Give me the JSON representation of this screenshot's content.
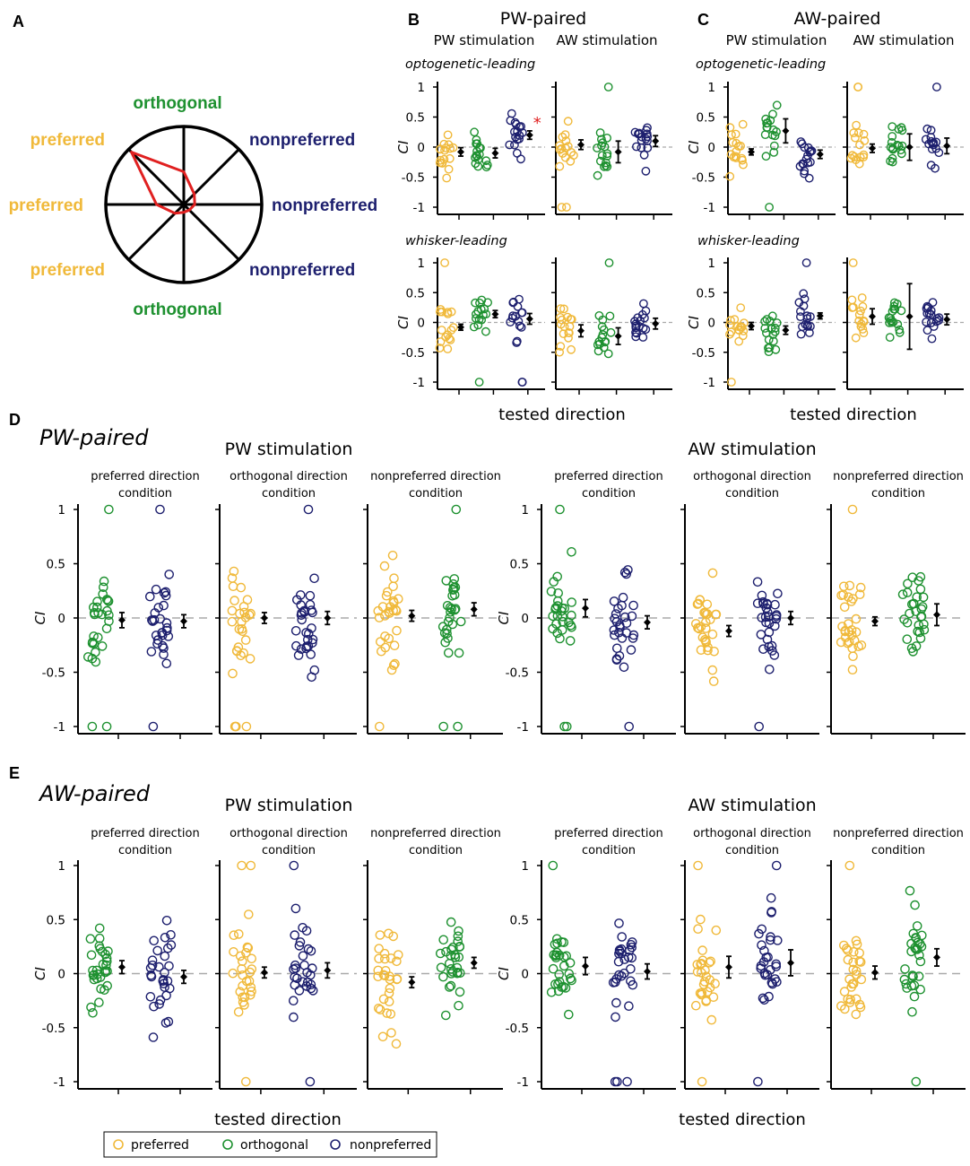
{
  "colors": {
    "preferred": "#f0b93a",
    "orthogonal": "#1e9130",
    "nonpreferred": "#1d1f6e",
    "polar_line": "#e02020",
    "star": "#e02020"
  },
  "panel_labels": [
    "A",
    "B",
    "C",
    "D",
    "E"
  ],
  "polar": {
    "labels": {
      "top": "orthogonal",
      "bottom": "orthogonal",
      "upper_left": "preferred",
      "left": "preferred",
      "lower_left": "preferred",
      "upper_right": "nonpreferred",
      "right": "nonpreferred",
      "lower_right": "nonpreferred"
    },
    "tuning_curve": [
      0.14,
      0.19,
      0.42,
      0.95,
      0.35,
      0.16,
      0.1,
      0.1
    ]
  },
  "panel_b": {
    "title": "PW-paired"
  },
  "panel_c": {
    "title": "AW-paired"
  },
  "stim_labels": {
    "pw": "PW stimulation",
    "aw": "AW stimulation"
  },
  "row_labels": {
    "optogenetic": "optogenetic-leading",
    "whisker": "whisker-leading"
  },
  "y_label": "CI",
  "tested_direction": "tested direction",
  "significance_star": "*",
  "panel_d": {
    "title": "PW-paired"
  },
  "panel_e": {
    "title": "AW-paired"
  },
  "condition_labels": [
    "preferred direction",
    "orthogonal direction",
    "nonpreferred direction"
  ],
  "condition_word": "condition",
  "legend": {
    "preferred": "preferred",
    "orthogonal": "orthogonal",
    "nonpreferred": "nonpreferred"
  },
  "chart_data": [
    {
      "type": "scatter",
      "panel": "B-top",
      "title": "PW-paired",
      "row": "optogenetic-leading",
      "ylabel": "CI",
      "ylim": [
        -1,
        1
      ],
      "yticks": [
        1,
        0.5,
        0,
        -0.5,
        -1
      ],
      "subplots": [
        {
          "stimulation": "PW stimulation",
          "series": [
            {
              "name": "preferred",
              "mean": -0.08,
              "err": 0.07
            },
            {
              "name": "orthogonal",
              "mean": -0.1,
              "err": 0.08
            },
            {
              "name": "nonpreferred",
              "mean": 0.2,
              "err": 0.07,
              "significant": true
            }
          ]
        },
        {
          "stimulation": "AW stimulation",
          "series": [
            {
              "name": "preferred",
              "mean": 0.04,
              "err": 0.08
            },
            {
              "name": "orthogonal",
              "mean": -0.08,
              "err": 0.18
            },
            {
              "name": "nonpreferred",
              "mean": 0.1,
              "err": 0.09
            }
          ]
        }
      ]
    },
    {
      "type": "scatter",
      "panel": "B-bottom",
      "row": "whisker-leading",
      "ylabel": "CI",
      "ylim": [
        -1,
        1
      ],
      "subplots": [
        {
          "stimulation": "PW stimulation",
          "series": [
            {
              "name": "preferred",
              "mean": -0.08,
              "err": 0.05
            },
            {
              "name": "orthogonal",
              "mean": 0.14,
              "err": 0.06
            },
            {
              "name": "nonpreferred",
              "mean": 0.06,
              "err": 0.09
            }
          ]
        },
        {
          "stimulation": "AW stimulation",
          "series": [
            {
              "name": "preferred",
              "mean": -0.14,
              "err": 0.1
            },
            {
              "name": "orthogonal",
              "mean": -0.23,
              "err": 0.14
            },
            {
              "name": "nonpreferred",
              "mean": -0.02,
              "err": 0.09
            }
          ]
        }
      ]
    },
    {
      "type": "scatter",
      "panel": "C-top",
      "title": "AW-paired",
      "row": "optogenetic-leading",
      "ylabel": "CI",
      "ylim": [
        -1,
        1
      ],
      "subplots": [
        {
          "stimulation": "PW stimulation",
          "series": [
            {
              "name": "preferred",
              "mean": -0.08,
              "err": 0.05
            },
            {
              "name": "orthogonal",
              "mean": 0.27,
              "err": 0.2
            },
            {
              "name": "nonpreferred",
              "mean": -0.12,
              "err": 0.07
            }
          ]
        },
        {
          "stimulation": "AW stimulation",
          "series": [
            {
              "name": "preferred",
              "mean": -0.02,
              "err": 0.07
            },
            {
              "name": "orthogonal",
              "mean": 0.0,
              "err": 0.22
            },
            {
              "name": "nonpreferred",
              "mean": 0.02,
              "err": 0.13
            }
          ]
        }
      ]
    },
    {
      "type": "scatter",
      "panel": "C-bottom",
      "row": "whisker-leading",
      "ylabel": "CI",
      "ylim": [
        -1,
        1
      ],
      "subplots": [
        {
          "stimulation": "PW stimulation",
          "series": [
            {
              "name": "preferred",
              "mean": -0.06,
              "err": 0.06
            },
            {
              "name": "orthogonal",
              "mean": -0.13,
              "err": 0.07
            },
            {
              "name": "nonpreferred",
              "mean": 0.11,
              "err": 0.05
            }
          ]
        },
        {
          "stimulation": "AW stimulation",
          "series": [
            {
              "name": "preferred",
              "mean": 0.1,
              "err": 0.13
            },
            {
              "name": "orthogonal",
              "mean": 0.1,
              "err": 0.55
            },
            {
              "name": "nonpreferred",
              "mean": 0.05,
              "err": 0.09
            }
          ]
        }
      ]
    },
    {
      "type": "scatter",
      "panel": "D",
      "title": "PW-paired",
      "ylabel": "CI",
      "ylim": [
        -1,
        1
      ],
      "xlabel": "tested direction",
      "subplots": [
        {
          "stimulation": "PW stimulation",
          "condition": "preferred direction condition",
          "series": [
            {
              "name": "orthogonal",
              "mean": -0.02,
              "err": 0.07
            },
            {
              "name": "nonpreferred",
              "mean": -0.03,
              "err": 0.06
            }
          ]
        },
        {
          "stimulation": "PW stimulation",
          "condition": "orthogonal direction condition",
          "series": [
            {
              "name": "preferred",
              "mean": 0.0,
              "err": 0.05
            },
            {
              "name": "nonpreferred",
              "mean": 0.0,
              "err": 0.06
            }
          ]
        },
        {
          "stimulation": "PW stimulation",
          "condition": "nonpreferred direction condition",
          "series": [
            {
              "name": "preferred",
              "mean": 0.02,
              "err": 0.05
            },
            {
              "name": "orthogonal",
              "mean": 0.08,
              "err": 0.06
            }
          ]
        },
        {
          "stimulation": "AW stimulation",
          "condition": "preferred direction condition",
          "series": [
            {
              "name": "orthogonal",
              "mean": 0.09,
              "err": 0.08
            },
            {
              "name": "nonpreferred",
              "mean": -0.04,
              "err": 0.06
            }
          ]
        },
        {
          "stimulation": "AW stimulation",
          "condition": "orthogonal direction condition",
          "series": [
            {
              "name": "preferred",
              "mean": -0.12,
              "err": 0.05
            },
            {
              "name": "nonpreferred",
              "mean": 0.0,
              "err": 0.06
            }
          ]
        },
        {
          "stimulation": "AW stimulation",
          "condition": "nonpreferred direction condition",
          "series": [
            {
              "name": "preferred",
              "mean": -0.03,
              "err": 0.04
            },
            {
              "name": "orthogonal",
              "mean": 0.03,
              "err": 0.1
            }
          ]
        }
      ]
    },
    {
      "type": "scatter",
      "panel": "E",
      "title": "AW-paired",
      "ylabel": "CI",
      "ylim": [
        -1,
        1
      ],
      "xlabel": "tested direction",
      "subplots": [
        {
          "stimulation": "PW stimulation",
          "condition": "preferred direction condition",
          "series": [
            {
              "name": "orthogonal",
              "mean": 0.06,
              "err": 0.06
            },
            {
              "name": "nonpreferred",
              "mean": -0.03,
              "err": 0.06
            }
          ]
        },
        {
          "stimulation": "PW stimulation",
          "condition": "orthogonal direction condition",
          "series": [
            {
              "name": "preferred",
              "mean": 0.01,
              "err": 0.05
            },
            {
              "name": "nonpreferred",
              "mean": 0.03,
              "err": 0.07
            }
          ]
        },
        {
          "stimulation": "PW stimulation",
          "condition": "nonpreferred direction condition",
          "series": [
            {
              "name": "preferred",
              "mean": -0.08,
              "err": 0.05
            },
            {
              "name": "orthogonal",
              "mean": 0.1,
              "err": 0.05
            }
          ]
        },
        {
          "stimulation": "AW stimulation",
          "condition": "preferred direction condition",
          "series": [
            {
              "name": "orthogonal",
              "mean": 0.07,
              "err": 0.08
            },
            {
              "name": "nonpreferred",
              "mean": 0.02,
              "err": 0.07
            }
          ]
        },
        {
          "stimulation": "AW stimulation",
          "condition": "orthogonal direction condition",
          "series": [
            {
              "name": "preferred",
              "mean": 0.06,
              "err": 0.1
            },
            {
              "name": "nonpreferred",
              "mean": 0.1,
              "err": 0.12
            }
          ]
        },
        {
          "stimulation": "AW stimulation",
          "condition": "nonpreferred direction condition",
          "series": [
            {
              "name": "preferred",
              "mean": 0.01,
              "err": 0.06
            },
            {
              "name": "orthogonal",
              "mean": 0.15,
              "err": 0.08
            }
          ]
        }
      ]
    }
  ]
}
